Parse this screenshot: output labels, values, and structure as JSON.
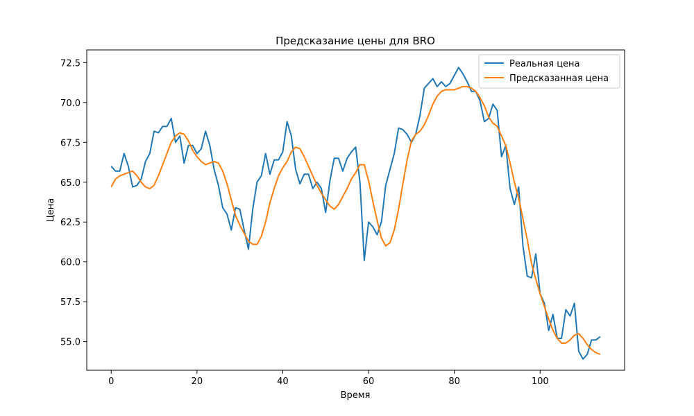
{
  "chart_data": {
    "type": "line",
    "title": "Предсказание цены для BRO",
    "xlabel": "Время",
    "ylabel": "Цена",
    "xlim": [
      -5.7,
      119.7
    ],
    "ylim": [
      53.2,
      73.3
    ],
    "xticks": [
      0,
      20,
      40,
      60,
      80,
      100
    ],
    "yticks": [
      55.0,
      57.5,
      60.0,
      62.5,
      65.0,
      67.5,
      70.0,
      72.5
    ],
    "ytick_labels": [
      "55.0",
      "57.5",
      "60.0",
      "62.5",
      "65.0",
      "67.5",
      "70.0",
      "72.5"
    ],
    "grid": false,
    "legend_position": "top-right",
    "series": [
      {
        "name": "Реальная цена",
        "color": "#1f77b4",
        "values": [
          66.0,
          65.7,
          65.7,
          66.8,
          66.0,
          64.7,
          64.8,
          65.2,
          66.3,
          66.8,
          68.2,
          68.1,
          68.5,
          68.5,
          69.0,
          67.5,
          67.9,
          66.2,
          67.3,
          67.3,
          66.8,
          67.1,
          68.2,
          67.3,
          65.8,
          64.8,
          63.4,
          63.0,
          62.0,
          63.4,
          63.3,
          62.0,
          60.8,
          63.3,
          65.0,
          65.4,
          66.8,
          65.5,
          66.4,
          66.4,
          66.9,
          68.8,
          67.9,
          65.8,
          64.9,
          65.5,
          65.5,
          64.6,
          65.0,
          64.6,
          63.1,
          65.1,
          66.5,
          66.5,
          65.7,
          66.5,
          66.9,
          67.2,
          65.0,
          60.1,
          62.5,
          62.2,
          61.7,
          62.5,
          64.8,
          65.8,
          66.8,
          68.4,
          68.3,
          68.0,
          67.5,
          68.0,
          69.2,
          70.9,
          71.2,
          71.5,
          71.0,
          71.3,
          71.0,
          71.2,
          71.7,
          72.2,
          71.8,
          71.3,
          70.7,
          70.7,
          70.1,
          68.8,
          69.0,
          69.9,
          69.5,
          66.6,
          67.3,
          64.6,
          63.6,
          64.7,
          61.0,
          59.1,
          59.0,
          60.5,
          58.0,
          57.4,
          55.7,
          56.7,
          55.2,
          55.2,
          57.0,
          56.6,
          57.4,
          54.4,
          53.9,
          54.2,
          55.1,
          55.1,
          55.3
        ]
      },
      {
        "name": "Предсказанная цена",
        "color": "#ff7f0e",
        "values": [
          64.7,
          65.2,
          65.4,
          65.5,
          65.6,
          65.7,
          65.4,
          65.0,
          64.7,
          64.6,
          64.8,
          65.4,
          66.1,
          66.8,
          67.5,
          67.9,
          68.1,
          68.0,
          67.6,
          67.0,
          66.6,
          66.3,
          66.1,
          66.2,
          66.3,
          66.2,
          65.7,
          64.9,
          63.9,
          62.9,
          62.3,
          61.8,
          61.3,
          61.1,
          61.1,
          61.6,
          62.5,
          63.7,
          64.6,
          65.4,
          65.9,
          66.3,
          66.9,
          67.2,
          67.1,
          66.6,
          66.0,
          65.4,
          64.8,
          64.3,
          63.9,
          63.5,
          63.3,
          63.6,
          64.1,
          64.6,
          65.2,
          65.6,
          66.1,
          66.1,
          65.1,
          63.8,
          62.6,
          61.5,
          61.0,
          61.2,
          62.0,
          63.3,
          64.9,
          66.4,
          67.6,
          68.0,
          68.2,
          68.6,
          69.2,
          69.9,
          70.4,
          70.7,
          70.8,
          70.8,
          70.8,
          70.9,
          71.0,
          71.0,
          70.9,
          70.7,
          70.3,
          69.8,
          69.1,
          68.7,
          68.5,
          67.9,
          67.3,
          66.2,
          65.0,
          64.0,
          62.7,
          61.4,
          59.9,
          58.9,
          58.0,
          57.2,
          56.4,
          55.7,
          55.2,
          54.9,
          54.9,
          55.1,
          55.4,
          55.5,
          55.2,
          54.8,
          54.5,
          54.3,
          54.2
        ]
      }
    ]
  }
}
